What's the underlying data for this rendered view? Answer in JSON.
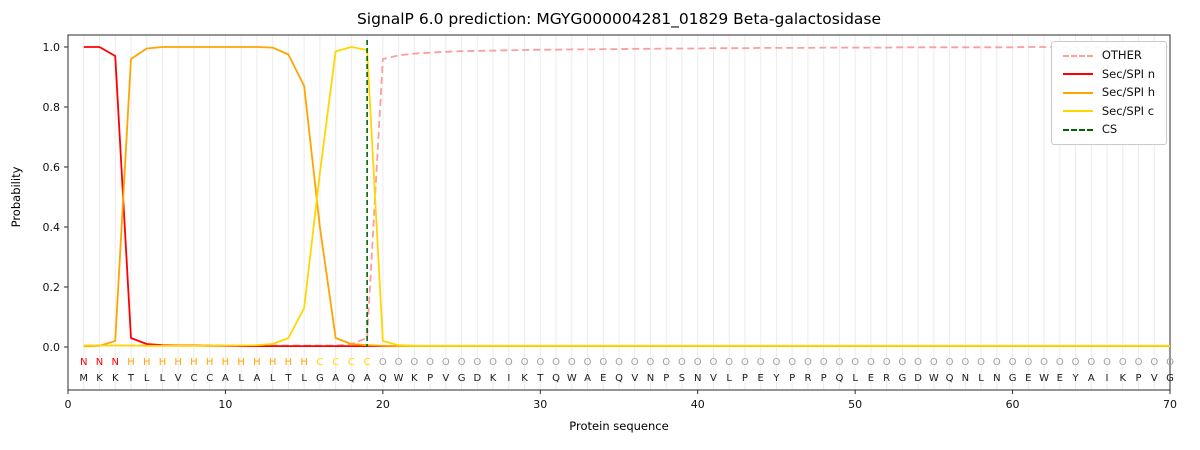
{
  "title": "SignalP 6.0 prediction: MGYG000004281_01829 Beta-galactosidase",
  "axes": {
    "x_label": "Protein sequence",
    "y_label": "Probability",
    "x_ticks": [
      0,
      10,
      20,
      30,
      40,
      50,
      60,
      70
    ],
    "y_ticks": [
      "0.0",
      "0.2",
      "0.4",
      "0.6",
      "0.8",
      "1.0"
    ]
  },
  "chart_data": {
    "type": "line",
    "title": "SignalP 6.0 prediction: MGYG000004281_01829 Beta-galactosidase",
    "xlabel": "Protein sequence",
    "ylabel": "Probability",
    "xlim": [
      0,
      70
    ],
    "ylim": [
      0,
      1.0
    ],
    "x_start": 1,
    "grid": "vertical-per-residue",
    "legend_position": "upper right",
    "series": [
      {
        "name": "OTHER",
        "color": "#fa9e9e",
        "dash": true,
        "values": [
          0.005,
          0.005,
          0.005,
          0.005,
          0.005,
          0.005,
          0.005,
          0.005,
          0.005,
          0.005,
          0.005,
          0.005,
          0.005,
          0.005,
          0.005,
          0.005,
          0.005,
          0.01,
          0.03,
          0.96,
          0.972,
          0.978,
          0.981,
          0.984,
          0.986,
          0.987,
          0.988,
          0.989,
          0.99,
          0.991,
          0.991,
          0.992,
          0.992,
          0.993,
          0.993,
          0.994,
          0.994,
          0.995,
          0.995,
          0.995,
          0.996,
          0.996,
          0.996,
          0.997,
          0.997,
          0.997,
          0.997,
          0.998,
          0.998,
          0.998,
          0.998,
          0.998,
          0.999,
          0.999,
          0.999,
          0.999,
          0.999,
          0.999,
          0.999,
          0.999,
          1.0,
          1.0,
          1.0,
          1.0,
          1.0,
          1.0,
          1.0,
          1.0,
          1.0,
          1.0
        ]
      },
      {
        "name": "Sec/SPI n",
        "color": "#ff0000",
        "dash": false,
        "values": [
          1.0,
          1.0,
          0.97,
          0.03,
          0.01,
          0.006,
          0.005,
          0.005,
          0.004,
          0.004,
          0.003,
          0.003,
          0.003,
          0.003,
          0.003,
          0.003,
          0.003,
          0.003,
          0.003,
          0.003,
          0.003,
          0.003,
          0.003,
          0.003,
          0.003,
          0.003,
          0.003,
          0.003,
          0.003,
          0.003,
          0.003,
          0.003,
          0.003,
          0.003,
          0.003,
          0.003,
          0.003,
          0.003,
          0.003,
          0.003,
          0.003,
          0.003,
          0.003,
          0.003,
          0.003,
          0.003,
          0.003,
          0.003,
          0.003,
          0.003,
          0.003,
          0.003,
          0.003,
          0.003,
          0.003,
          0.003,
          0.003,
          0.003,
          0.003,
          0.003,
          0.003,
          0.003,
          0.003,
          0.003,
          0.003,
          0.003,
          0.003,
          0.003,
          0.003,
          0.003
        ]
      },
      {
        "name": "Sec/SPI h",
        "color": "#ffa500",
        "dash": false,
        "values": [
          0.002,
          0.004,
          0.02,
          0.96,
          0.995,
          1.0,
          1.0,
          1.0,
          1.0,
          1.0,
          1.0,
          1.0,
          0.998,
          0.975,
          0.87,
          0.4,
          0.03,
          0.01,
          0.006,
          0.004,
          0.003,
          0.003,
          0.003,
          0.003,
          0.003,
          0.003,
          0.003,
          0.003,
          0.003,
          0.003,
          0.003,
          0.003,
          0.003,
          0.003,
          0.003,
          0.003,
          0.003,
          0.003,
          0.003,
          0.003,
          0.003,
          0.003,
          0.003,
          0.003,
          0.003,
          0.003,
          0.003,
          0.003,
          0.003,
          0.003,
          0.003,
          0.003,
          0.003,
          0.003,
          0.003,
          0.003,
          0.003,
          0.003,
          0.003,
          0.003,
          0.003,
          0.003,
          0.003,
          0.003,
          0.003,
          0.003,
          0.003,
          0.003,
          0.003,
          0.003
        ]
      },
      {
        "name": "Sec/SPI c",
        "color": "#ffd700",
        "dash": false,
        "values": [
          0.005,
          0.005,
          0.005,
          0.005,
          0.004,
          0.004,
          0.004,
          0.004,
          0.004,
          0.005,
          0.005,
          0.006,
          0.01,
          0.03,
          0.13,
          0.58,
          0.985,
          1.0,
          0.99,
          0.02,
          0.006,
          0.004,
          0.004,
          0.004,
          0.004,
          0.004,
          0.004,
          0.004,
          0.004,
          0.004,
          0.004,
          0.004,
          0.004,
          0.004,
          0.004,
          0.004,
          0.004,
          0.004,
          0.004,
          0.004,
          0.004,
          0.004,
          0.004,
          0.004,
          0.004,
          0.004,
          0.004,
          0.004,
          0.004,
          0.004,
          0.004,
          0.004,
          0.004,
          0.004,
          0.004,
          0.004,
          0.004,
          0.004,
          0.004,
          0.004,
          0.004,
          0.004,
          0.004,
          0.004,
          0.004,
          0.004,
          0.004,
          0.004,
          0.004,
          0.004
        ]
      }
    ],
    "cs_line": {
      "name": "CS",
      "x": 19,
      "color": "#006400",
      "dash": true
    },
    "sequence": "MKKTLLVCCALALTLGAQAQWKPVGDKIKTQWAEQVNPSNVLPEYPRPQLERGDWQNLNGEWEYAIKPVG",
    "regions": [
      {
        "label": "N",
        "start": 1,
        "end": 3
      },
      {
        "label": "H",
        "start": 4,
        "end": 15
      },
      {
        "label": "C",
        "start": 16,
        "end": 19
      },
      {
        "label": "O",
        "start": 20,
        "end": 70
      }
    ],
    "region_colors": {
      "N": "#ff0000",
      "H": "#ffa500",
      "C": "#ffd700",
      "O": "#a0a0a0"
    }
  }
}
